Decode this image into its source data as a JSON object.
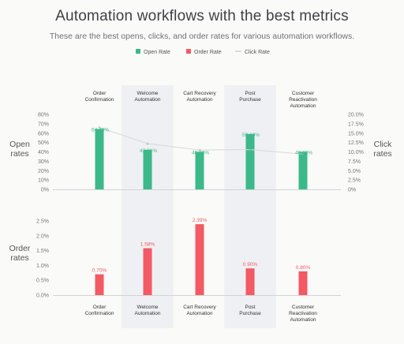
{
  "header": {
    "title": "Automation workflows with the best metrics",
    "subtitle": "These are the best opens, clicks, and order rates for various automation workflows."
  },
  "chart_data": [
    {
      "type": "bar",
      "categories": [
        "Order\nConfirmation",
        "Welcome\nAutomation",
        "Cart Recovery\nAutomation",
        "Post\nPurchase",
        "Customer\nReactivation\nAutomation"
      ],
      "ylabel": "Open\nrates",
      "y2label": "Click\nrates",
      "ylim": [
        0,
        80
      ],
      "y2lim": [
        0,
        20
      ],
      "yticks": [
        "80%",
        "70%",
        "60%",
        "50%",
        "40%",
        "30%",
        "20%",
        "10%",
        "0%"
      ],
      "y2ticks": [
        "20.0%",
        "17.5%",
        "15.0%",
        "12.5%",
        "10.0%",
        "7.5%",
        "5.0%",
        "2.5%",
        "0%"
      ],
      "series": [
        {
          "name": "Open Rate",
          "type": "bar",
          "color": "#3bb98a",
          "values": [
            64.4,
            42.21,
            40.08,
            59.1,
            40.08
          ],
          "labels": [
            "64.40%",
            "42.21%",
            "40.08%",
            "59.10%",
            "40.08%"
          ]
        },
        {
          "name": "Click Rate",
          "type": "line",
          "axis": "right",
          "color": "#d5d8dc",
          "values": [
            16.5,
            12.2,
            10.5,
            10.6,
            9.4
          ]
        }
      ],
      "legend": "top-center"
    },
    {
      "type": "bar",
      "categories": [
        "Order\nConfirmation",
        "Welcome\nAutomation",
        "Cart Recovery\nAutomation",
        "Post\nPurchase",
        "Customer\nReactivation\nAutomation"
      ],
      "ylabel": "Order\nrates",
      "ylim": [
        0,
        2.5
      ],
      "yticks": [
        "2.5%",
        "2.0%",
        "1.5%",
        "1.0%",
        "0.5%",
        "0.0%"
      ],
      "series": [
        {
          "name": "Order Rate",
          "type": "bar",
          "color": "#f35a64",
          "values": [
            0.7,
            1.58,
            2.39,
            0.9,
            0.8
          ],
          "labels": [
            "0.70%",
            "1.58%",
            "2.39%",
            "0.90%",
            "0.80%"
          ]
        }
      ]
    }
  ],
  "colors": {
    "open": "#3bb98a",
    "order": "#f35a64",
    "click": "#cfd3d8",
    "highlight": "#eef0f3"
  }
}
